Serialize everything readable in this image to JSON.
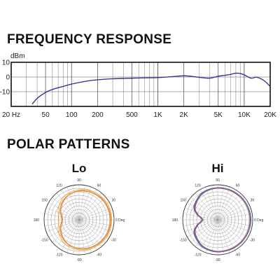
{
  "headings": {
    "frequency": "FREQUENCY RESPONSE",
    "polar": "POLAR PATTERNS"
  },
  "chart_data": [
    {
      "type": "line",
      "title": "FREQUENCY RESPONSE",
      "ylabel": "dBm",
      "x_scale": "log",
      "xlim": [
        20,
        20000
      ],
      "ylim": [
        -20,
        10
      ],
      "x_ticks": [
        20,
        50,
        100,
        200,
        500,
        1000,
        2000,
        5000,
        10000,
        20000
      ],
      "x_tick_labels": [
        "20 Hz",
        "50",
        "100",
        "200",
        "500",
        "1K",
        "2K",
        "5K",
        "10K",
        "20K"
      ],
      "y_ticks": [
        10,
        0,
        -10
      ],
      "y_tick_labels": [
        "10",
        "0",
        "-10"
      ],
      "grid": true,
      "line_color": "#2a2a8c",
      "series": [
        {
          "x": [
            35,
            40,
            50,
            60,
            70,
            80,
            100,
            150,
            200,
            300,
            500,
            700,
            1000,
            1500,
            2000,
            2500,
            3000,
            4000,
            5000,
            6000,
            7000,
            8000,
            9000,
            10000,
            12000,
            14000,
            17000,
            20000
          ],
          "y": [
            -18.5,
            -14.5,
            -10.5,
            -8.5,
            -7.3,
            -6.4,
            -4.8,
            -2.8,
            -1.9,
            -1.2,
            -0.8,
            -0.6,
            -0.4,
            0.3,
            0.8,
            0.4,
            -0.2,
            -0.8,
            0.5,
            1.2,
            1.8,
            2.6,
            2.4,
            1.5,
            -0.8,
            -0.2,
            -2.5,
            -6.5
          ]
        }
      ]
    },
    {
      "type": "polar",
      "title": "Lo",
      "angle_labels": [
        {
          "deg": 0,
          "text": "0 Deg"
        },
        {
          "deg": 30,
          "text": "30"
        },
        {
          "deg": 60,
          "text": "60"
        },
        {
          "deg": 90,
          "text": "90"
        },
        {
          "deg": 120,
          "text": "120"
        },
        {
          "deg": 150,
          "text": "150"
        },
        {
          "deg": 180,
          "text": "180"
        },
        {
          "deg": 210,
          "text": "-150"
        },
        {
          "deg": 240,
          "text": "-120"
        },
        {
          "deg": 270,
          "text": "-90"
        },
        {
          "deg": 300,
          "text": "-60"
        },
        {
          "deg": 330,
          "text": "-30"
        }
      ],
      "series": [
        {
          "color": "#f2a531",
          "angles": [
            0,
            30,
            60,
            90,
            120,
            150,
            180,
            210,
            240,
            270,
            300,
            330
          ],
          "values": [
            0.93,
            0.93,
            0.9,
            0.86,
            0.8,
            0.68,
            0.58,
            0.68,
            0.8,
            0.86,
            0.9,
            0.93
          ]
        },
        {
          "color": "#d9892a",
          "angles": [
            0,
            30,
            60,
            90,
            120,
            150,
            180,
            210,
            240,
            270,
            300,
            330
          ],
          "values": [
            0.88,
            0.88,
            0.86,
            0.82,
            0.75,
            0.63,
            0.5,
            0.63,
            0.75,
            0.82,
            0.86,
            0.88
          ]
        },
        {
          "color": "#e27b3a",
          "angles": [
            0,
            30,
            60,
            90,
            120,
            150,
            180,
            210,
            240,
            270,
            300,
            330
          ],
          "values": [
            0.91,
            0.9,
            0.87,
            0.83,
            0.74,
            0.6,
            0.47,
            0.6,
            0.74,
            0.83,
            0.87,
            0.9
          ]
        }
      ]
    },
    {
      "type": "polar",
      "title": "Hi",
      "angle_labels": [
        {
          "deg": 0,
          "text": "0 Deg"
        },
        {
          "deg": 30,
          "text": "30"
        },
        {
          "deg": 60,
          "text": "60"
        },
        {
          "deg": 90,
          "text": "90"
        },
        {
          "deg": 120,
          "text": "120"
        },
        {
          "deg": 150,
          "text": "150"
        },
        {
          "deg": 180,
          "text": "180"
        },
        {
          "deg": 210,
          "text": "-150"
        },
        {
          "deg": 240,
          "text": "-120"
        },
        {
          "deg": 270,
          "text": "-90"
        },
        {
          "deg": 300,
          "text": "-60"
        },
        {
          "deg": 330,
          "text": "-30"
        }
      ],
      "series": [
        {
          "color": "#2a3d9c",
          "angles": [
            0,
            30,
            60,
            90,
            120,
            150,
            165,
            180,
            195,
            210,
            240,
            270,
            300,
            330
          ],
          "values": [
            0.95,
            0.94,
            0.93,
            0.92,
            0.89,
            0.78,
            0.62,
            0.45,
            0.62,
            0.78,
            0.89,
            0.92,
            0.93,
            0.94
          ]
        },
        {
          "color": "#8a3da8",
          "angles": [
            0,
            30,
            60,
            90,
            120,
            150,
            165,
            180,
            195,
            210,
            240,
            270,
            300,
            330
          ],
          "values": [
            0.93,
            0.93,
            0.92,
            0.91,
            0.87,
            0.74,
            0.58,
            0.42,
            0.58,
            0.74,
            0.87,
            0.91,
            0.92,
            0.93
          ]
        },
        {
          "color": "#3a8fb0",
          "angles": [
            0,
            30,
            60,
            90,
            120,
            150,
            165,
            180,
            195,
            210,
            240,
            270,
            300,
            330
          ],
          "values": [
            0.94,
            0.94,
            0.92,
            0.91,
            0.88,
            0.76,
            0.6,
            0.43,
            0.6,
            0.76,
            0.88,
            0.91,
            0.92,
            0.94
          ]
        },
        {
          "color": "#c44a5a",
          "angles": [
            0,
            30,
            60,
            90,
            120,
            150,
            165,
            180,
            195,
            210,
            240,
            270,
            300,
            330
          ],
          "values": [
            0.92,
            0.92,
            0.91,
            0.9,
            0.86,
            0.75,
            0.6,
            0.44,
            0.6,
            0.75,
            0.86,
            0.9,
            0.91,
            0.92
          ]
        }
      ]
    }
  ]
}
